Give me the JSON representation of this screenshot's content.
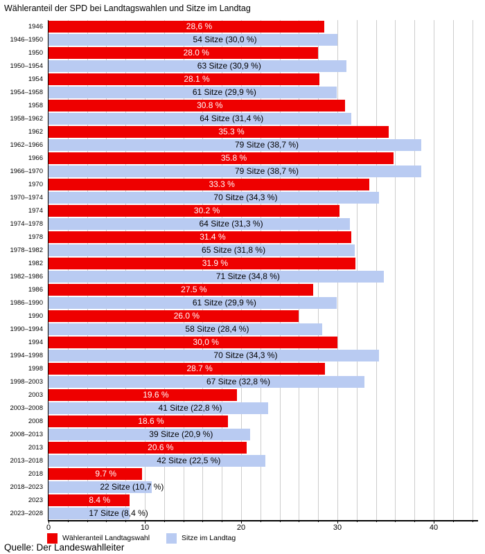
{
  "title": "Wähleranteil der SPD bei Landtagswahlen und Sitze im Landtag",
  "source": "Quelle: Der Landeswahlleiter",
  "legend": {
    "items": [
      {
        "id": "vote",
        "label": "Wähleranteil Landtagswahl",
        "color": "#ee0000"
      },
      {
        "id": "seats",
        "label": "Sitze im Landtag",
        "color": "#b9cbf2"
      }
    ]
  },
  "colors": {
    "vote_bar": "#ee0000",
    "seat_bar": "#b9cbf2",
    "vote_bar_text": "#ffffff",
    "seat_bar_text": "#000000",
    "gridline": "#cccccc",
    "axis": "#000000",
    "background": "#ffffff"
  },
  "chart_data": {
    "type": "bar",
    "orientation": "horizontal",
    "title": "Wähleranteil der SPD bei Landtagswahlen und Sitze im Landtag",
    "xlabel": "",
    "ylabel": "",
    "xlim": [
      0,
      44.6
    ],
    "x_ticks": [
      0,
      10,
      20,
      30,
      40
    ],
    "grid": "vertical minor gridlines every 2 units",
    "legend_position": "bottom",
    "series_names": [
      "Wähleranteil Landtagswahl",
      "Sitze im Landtag"
    ],
    "rows": [
      {
        "category": "1946",
        "series": "vote",
        "value": 28.6,
        "label": "28,6 %"
      },
      {
        "category": "1946–1950",
        "series": "seats",
        "value": 30.0,
        "seats": 54,
        "label": "54 Sitze (30,0 %)"
      },
      {
        "category": "1950",
        "series": "vote",
        "value": 28.0,
        "label": "28.0 %"
      },
      {
        "category": "1950–1954",
        "series": "seats",
        "value": 30.9,
        "seats": 63,
        "label": "63 Sitze (30,9 %)"
      },
      {
        "category": "1954",
        "series": "vote",
        "value": 28.1,
        "label": "28.1 %"
      },
      {
        "category": "1954–1958",
        "series": "seats",
        "value": 29.9,
        "seats": 61,
        "label": "61 Sitze (29,9 %)"
      },
      {
        "category": "1958",
        "series": "vote",
        "value": 30.8,
        "label": "30.8 %"
      },
      {
        "category": "1958–1962",
        "series": "seats",
        "value": 31.4,
        "seats": 64,
        "label": "64 Sitze (31,4 %)"
      },
      {
        "category": "1962",
        "series": "vote",
        "value": 35.3,
        "label": "35.3 %"
      },
      {
        "category": "1962–1966",
        "series": "seats",
        "value": 38.7,
        "seats": 79,
        "label": "79 Sitze (38,7 %)"
      },
      {
        "category": "1966",
        "series": "vote",
        "value": 35.8,
        "label": "35.8 %"
      },
      {
        "category": "1966–1970",
        "series": "seats",
        "value": 38.7,
        "seats": 79,
        "label": "79 Sitze (38,7 %)"
      },
      {
        "category": "1970",
        "series": "vote",
        "value": 33.3,
        "label": "33.3 %"
      },
      {
        "category": "1970–1974",
        "series": "seats",
        "value": 34.3,
        "seats": 70,
        "label": "70 Sitze (34,3 %)"
      },
      {
        "category": "1974",
        "series": "vote",
        "value": 30.2,
        "label": "30.2 %"
      },
      {
        "category": "1974–1978",
        "series": "seats",
        "value": 31.3,
        "seats": 64,
        "label": "64 Sitze (31,3 %)"
      },
      {
        "category": "1978",
        "series": "vote",
        "value": 31.4,
        "label": "31.4 %"
      },
      {
        "category": "1978–1982",
        "series": "seats",
        "value": 31.8,
        "seats": 65,
        "label": "65 Sitze (31,8 %)"
      },
      {
        "category": "1982",
        "series": "vote",
        "value": 31.9,
        "label": "31.9 %"
      },
      {
        "category": "1982–1986",
        "series": "seats",
        "value": 34.8,
        "seats": 71,
        "label": "71 Sitze (34,8 %)"
      },
      {
        "category": "1986",
        "series": "vote",
        "value": 27.5,
        "label": "27.5 %"
      },
      {
        "category": "1986–1990",
        "series": "seats",
        "value": 29.9,
        "seats": 61,
        "label": "61 Sitze (29,9 %)"
      },
      {
        "category": "1990",
        "series": "vote",
        "value": 26.0,
        "label": "26.0 %"
      },
      {
        "category": "1990–1994",
        "series": "seats",
        "value": 28.4,
        "seats": 58,
        "label": "58 Sitze (28,4 %)"
      },
      {
        "category": "1994",
        "series": "vote",
        "value": 30.0,
        "label": "30,0 %"
      },
      {
        "category": "1994–1998",
        "series": "seats",
        "value": 34.3,
        "seats": 70,
        "label": "70 Sitze (34,3 %)"
      },
      {
        "category": "1998",
        "series": "vote",
        "value": 28.7,
        "label": "28.7 %"
      },
      {
        "category": "1998–2003",
        "series": "seats",
        "value": 32.8,
        "seats": 67,
        "label": "67 Sitze (32,8 %)"
      },
      {
        "category": "2003",
        "series": "vote",
        "value": 19.6,
        "label": "19.6 %"
      },
      {
        "category": "2003–2008",
        "series": "seats",
        "value": 22.8,
        "seats": 41,
        "label": "41 Sitze (22,8 %)"
      },
      {
        "category": "2008",
        "series": "vote",
        "value": 18.6,
        "label": "18.6 %"
      },
      {
        "category": "2008–2013",
        "series": "seats",
        "value": 20.9,
        "seats": 39,
        "label": "39 Sitze (20,9 %)"
      },
      {
        "category": "2013",
        "series": "vote",
        "value": 20.6,
        "label": "20.6 %"
      },
      {
        "category": "2013–2018",
        "series": "seats",
        "value": 22.5,
        "seats": 42,
        "label": "42 Sitze (22,5 %)"
      },
      {
        "category": "2018",
        "series": "vote",
        "value": 9.7,
        "label": "9.7 %"
      },
      {
        "category": "2018–2023",
        "series": "seats",
        "value": 10.7,
        "seats": 22,
        "label": "22 Sitze (10,7 %)"
      },
      {
        "category": "2023",
        "series": "vote",
        "value": 8.4,
        "label": "8.4 %"
      },
      {
        "category": "2023–2028",
        "series": "seats",
        "value": 8.4,
        "seats": 17,
        "label": "17 Sitze (8,4 %)"
      }
    ]
  }
}
